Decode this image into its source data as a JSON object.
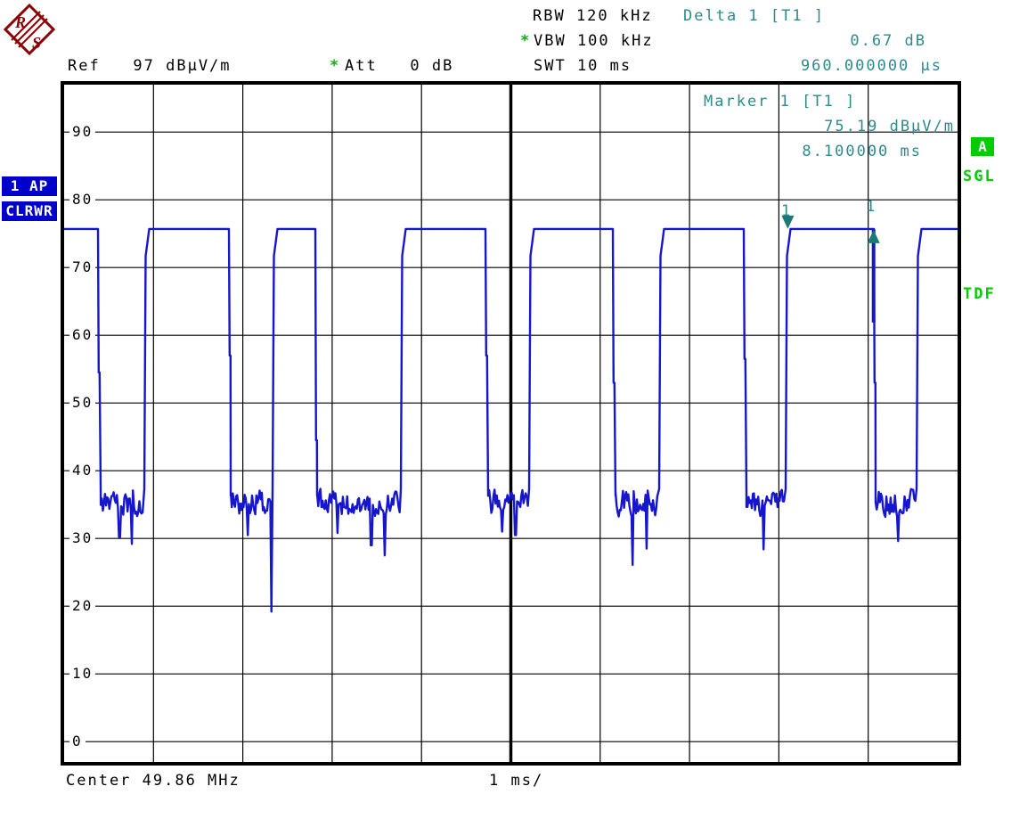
{
  "header": {
    "ref": "Ref   97 dBµV/m",
    "att_asterisk": "*",
    "att": "Att   0 dB",
    "rbw": "RBW 120 kHz",
    "vbw_asterisk": "*",
    "vbw": "VBW 100 kHz",
    "swt": "SWT 10 ms",
    "delta_title": "Delta 1 [T1 ]",
    "delta_value": "0.67 dB",
    "delta_time": "960.000000 µs"
  },
  "marker_info": {
    "title": "Marker 1 [T1 ]",
    "value": "75.19 dBµV/m",
    "time": "8.100000 ms"
  },
  "trace_labels": {
    "detector": "1 AP",
    "mode": "CLRWR"
  },
  "side": {
    "screen": "A",
    "single_sweep": "SGL",
    "transducer": "TDF"
  },
  "footer": {
    "center": "Center 49.86 MHz",
    "per_div": "1 ms/"
  },
  "logo": {
    "letter_top": "R",
    "letter_bottom": "S"
  },
  "colors": {
    "trace": "#1616cc",
    "grid": "#000000",
    "teal_text": "#2e8b8b",
    "green": "#00bb00",
    "label_box_blue": "#0000cc",
    "marker_fill": "#1a7a78",
    "logo_red": "#8b0000"
  },
  "axis": {
    "y_ticks": [
      "90",
      "80",
      "70",
      "60",
      "50",
      "40",
      "30",
      "20",
      "10",
      "0"
    ]
  },
  "chart_data": {
    "type": "line",
    "x_axis": {
      "label": "1 ms/",
      "start_ms": 0,
      "end_ms": 10,
      "divisions": 10
    },
    "y_axis": {
      "unit": "dBµV/m",
      "top_level_dB": 97,
      "dB_per_division": 10,
      "divisions": 10,
      "gridlines_dB": [
        90,
        80,
        70,
        60,
        50,
        40,
        30,
        20,
        10,
        0
      ]
    },
    "burst_level_dB": 75.7,
    "noise_mean_dB": 35.3,
    "noise_spread_dB": 2.6,
    "segments": [
      {
        "kind": "burst",
        "t0": 0.0,
        "t1": 0.379,
        "fall_shelf_dB": 54.5
      },
      {
        "kind": "noise",
        "t0": 0.41,
        "t1": 0.887,
        "dips": [
          [
            0.62,
            30.2
          ],
          [
            0.76,
            29.2
          ]
        ]
      },
      {
        "kind": "burst",
        "t0": 0.917,
        "t1": 1.844,
        "fall_shelf_dB": 57.0
      },
      {
        "kind": "noise",
        "t0": 1.864,
        "t1": 2.325,
        "dips": [
          [
            2.06,
            30.5
          ],
          [
            2.318,
            19.2
          ]
        ]
      },
      {
        "kind": "burst",
        "t0": 2.353,
        "t1": 2.812,
        "fall_shelf_dB": 44.5
      },
      {
        "kind": "noise",
        "t0": 2.832,
        "t1": 3.758,
        "dips": [
          [
            3.06,
            30.8
          ],
          [
            3.44,
            29.0
          ],
          [
            3.589,
            27.5
          ]
        ]
      },
      {
        "kind": "burst",
        "t0": 3.789,
        "t1": 4.716,
        "fall_shelf_dB": 57.0
      },
      {
        "kind": "noise",
        "t0": 4.746,
        "t1": 5.194,
        "dips": [
          [
            4.9,
            31.0
          ],
          [
            5.05,
            30.5
          ]
        ]
      },
      {
        "kind": "burst",
        "t0": 5.224,
        "t1": 6.142,
        "fall_shelf_dB": 53.0
      },
      {
        "kind": "noise",
        "t0": 6.171,
        "t1": 6.64,
        "dips": [
          [
            6.361,
            26.1
          ],
          [
            6.52,
            28.5
          ]
        ]
      },
      {
        "kind": "burst",
        "t0": 6.68,
        "t1": 7.607,
        "fall_shelf_dB": 56.5
      },
      {
        "kind": "noise",
        "t0": 7.637,
        "t1": 8.066,
        "dips": [
          [
            7.826,
            28.4
          ]
        ]
      },
      {
        "kind": "burst",
        "t0": 8.096,
        "t1": 9.063,
        "fall_shelf_dB": 53.0,
        "thick_fall": true
      },
      {
        "kind": "noise",
        "t0": 9.083,
        "t1": 9.531,
        "dips": [
          [
            9.332,
            29.6
          ]
        ]
      },
      {
        "kind": "burst",
        "t0": 9.561,
        "t1": 10.0
      }
    ],
    "markers": [
      {
        "name": "Marker 1",
        "label": "1",
        "t_ms": 8.1,
        "level_dB": 75.19,
        "shape": "down"
      },
      {
        "name": "Delta 1",
        "label": "1",
        "t_ms": 9.06,
        "delta_dB": 0.67,
        "delta_t_us": 960,
        "shape": "up"
      }
    ]
  }
}
